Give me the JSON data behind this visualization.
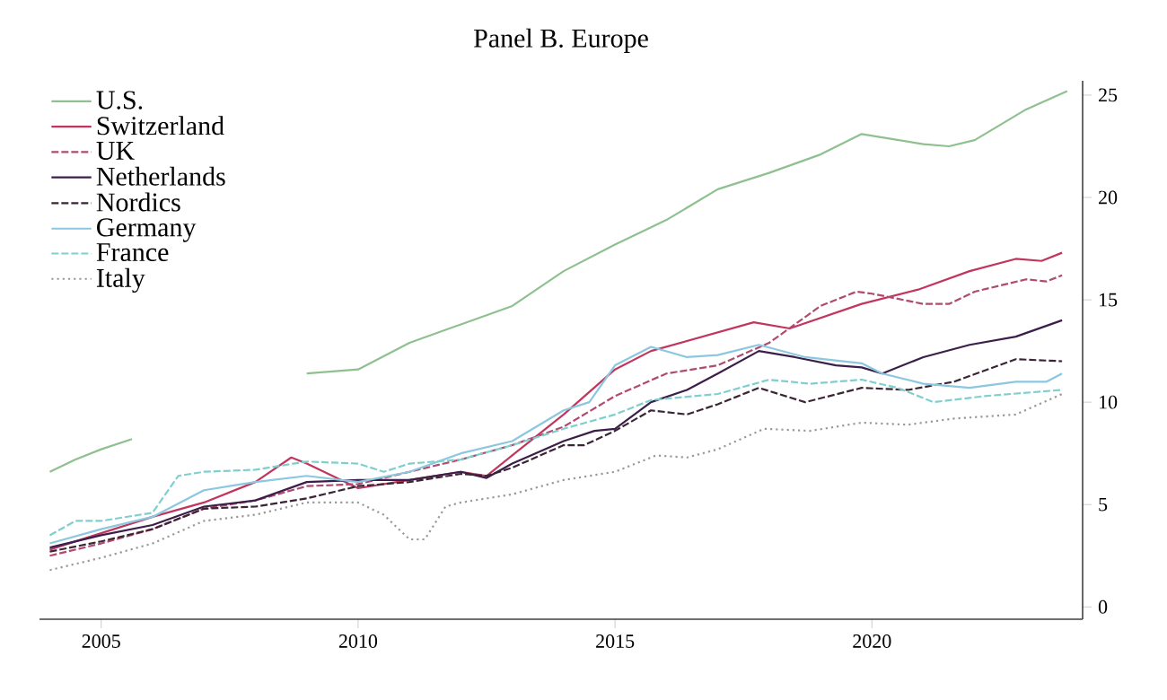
{
  "chart_data": {
    "type": "line",
    "title": "Panel B. Europe",
    "xlim": [
      2003.8,
      2024.1
    ],
    "ylim": [
      -0.6,
      25.7
    ],
    "xticks": [
      2005,
      2010,
      2015,
      2020
    ],
    "yticks": [
      0,
      5,
      10,
      15,
      20,
      25
    ],
    "legend": "top left",
    "grid": false,
    "marker": "none",
    "series": [
      {
        "name": "U.S.",
        "color": "#8fc08f",
        "line_style": "solid",
        "x": [
          2004,
          2004.5,
          2005,
          2005.6,
          2007,
          2009,
          2010,
          2011,
          2012,
          2013,
          2014,
          2015,
          2016,
          2017,
          2018,
          2019,
          2019.8,
          2021,
          2021.5,
          2022,
          2023,
          2023.8
        ],
        "values": [
          6.6,
          7.2,
          7.7,
          8.2,
          null,
          11.4,
          11.6,
          12.9,
          13.8,
          14.7,
          16.4,
          17.7,
          18.9,
          20.4,
          21.2,
          22.1,
          23.1,
          22.6,
          22.5,
          22.8,
          24.3,
          25.2
        ]
      },
      {
        "name": "Switzerland",
        "color": "#c0365e",
        "line_style": "solid",
        "x": [
          2004,
          2005,
          2006,
          2007,
          2008,
          2008.7,
          2009,
          2009.5,
          2010,
          2011,
          2012,
          2012.5,
          2013,
          2014,
          2015,
          2015.7,
          2017.7,
          2018.4,
          2019.8,
          2020.9,
          2021.9,
          2022.8,
          2023.3,
          2023.7
        ],
        "values": [
          2.8,
          3.6,
          4.4,
          5.1,
          6.1,
          7.3,
          7.0,
          6.4,
          5.8,
          6.2,
          6.6,
          6.4,
          7.4,
          9.4,
          11.6,
          12.5,
          13.9,
          13.6,
          14.8,
          15.5,
          16.4,
          17.0,
          16.9,
          17.3
        ]
      },
      {
        "name": "UK",
        "color": "#b04a6e",
        "line_style": "dashed",
        "x": [
          2004,
          2005,
          2006,
          2007,
          2008,
          2009,
          2010,
          2011,
          2012,
          2013,
          2014,
          2015,
          2016,
          2017,
          2018,
          2019,
          2019.7,
          2020,
          2021,
          2021.5,
          2022,
          2023,
          2023.4,
          2023.7
        ],
        "values": [
          2.5,
          3.1,
          3.8,
          4.8,
          5.2,
          5.9,
          6.0,
          6.6,
          7.2,
          7.9,
          8.8,
          10.3,
          11.4,
          11.8,
          12.9,
          14.7,
          15.4,
          15.3,
          14.8,
          14.8,
          15.4,
          16.0,
          15.9,
          16.2
        ]
      },
      {
        "name": "Netherlands",
        "color": "#3b1f4a",
        "line_style": "solid",
        "x": [
          2004,
          2005,
          2006,
          2007,
          2008,
          2009,
          2010,
          2011,
          2012,
          2012.5,
          2013,
          2014,
          2014.6,
          2015,
          2015.7,
          2016.4,
          2017,
          2017.8,
          2018.5,
          2019.3,
          2019.8,
          2020.2,
          2021,
          2021.9,
          2022.8,
          2023.7
        ],
        "values": [
          2.9,
          3.5,
          4.0,
          4.9,
          5.2,
          6.1,
          6.2,
          6.2,
          6.6,
          6.3,
          7.0,
          8.1,
          8.6,
          8.7,
          10.0,
          10.6,
          11.4,
          12.5,
          12.2,
          11.8,
          11.7,
          11.4,
          12.2,
          12.8,
          13.2,
          14.0
        ]
      },
      {
        "name": "Nordics",
        "color": "#3b2535",
        "line_style": "dashed",
        "x": [
          2004,
          2005,
          2006,
          2007,
          2008,
          2009,
          2010,
          2011,
          2012,
          2012.5,
          2013,
          2014,
          2014.4,
          2015,
          2015.7,
          2016.4,
          2017,
          2017.8,
          2018.7,
          2019.8,
          2020.7,
          2021.6,
          2022.8,
          2023.7
        ],
        "values": [
          2.7,
          3.2,
          3.8,
          4.8,
          4.9,
          5.3,
          5.9,
          6.1,
          6.5,
          6.4,
          6.8,
          7.9,
          7.9,
          8.6,
          9.6,
          9.4,
          9.9,
          10.7,
          10.0,
          10.7,
          10.6,
          11.0,
          12.1,
          12.0
        ]
      },
      {
        "name": "Germany",
        "color": "#8cc7e0",
        "line_style": "solid",
        "x": [
          2004,
          2005,
          2006,
          2007,
          2008,
          2009,
          2010,
          2011,
          2012,
          2013,
          2014,
          2014.5,
          2015,
          2015.7,
          2016.4,
          2017,
          2017.8,
          2018.7,
          2019.8,
          2020.2,
          2021,
          2021.9,
          2022.8,
          2023.4,
          2023.7
        ],
        "values": [
          3.1,
          3.8,
          4.4,
          5.7,
          6.1,
          6.4,
          6.1,
          6.6,
          7.5,
          8.1,
          9.6,
          10.0,
          11.8,
          12.7,
          12.2,
          12.3,
          12.8,
          12.2,
          11.9,
          11.4,
          10.9,
          10.7,
          11.0,
          11.0,
          11.4
        ]
      },
      {
        "name": "France",
        "color": "#7fcfcf",
        "line_style": "dashed",
        "x": [
          2004,
          2004.5,
          2005,
          2006,
          2006.5,
          2007,
          2008,
          2009,
          2010,
          2010.5,
          2011,
          2012,
          2013,
          2014,
          2015,
          2015.7,
          2017,
          2018,
          2018.8,
          2019.8,
          2020.5,
          2021.2,
          2022.2,
          2023.7
        ],
        "values": [
          3.5,
          4.2,
          4.2,
          4.6,
          6.4,
          6.6,
          6.7,
          7.1,
          7.0,
          6.6,
          7.0,
          7.2,
          7.9,
          8.7,
          9.4,
          10.1,
          10.4,
          11.1,
          10.9,
          11.1,
          10.7,
          10.0,
          10.3,
          10.6
        ]
      },
      {
        "name": "Italy",
        "color": "#999999",
        "line_style": "dotted",
        "x": [
          2004,
          2005,
          2006,
          2007,
          2008,
          2009,
          2010,
          2010.5,
          2011,
          2011.3,
          2011.7,
          2012,
          2013,
          2014,
          2015,
          2015.8,
          2016.4,
          2017,
          2017.9,
          2018.8,
          2019.8,
          2020.7,
          2021.6,
          2022.8,
          2023.7
        ],
        "values": [
          1.8,
          2.4,
          3.1,
          4.2,
          4.5,
          5.1,
          5.1,
          4.5,
          3.3,
          3.3,
          4.9,
          5.1,
          5.5,
          6.2,
          6.6,
          7.4,
          7.3,
          7.7,
          8.7,
          8.6,
          9.0,
          8.9,
          9.2,
          9.4,
          10.4
        ]
      }
    ]
  }
}
